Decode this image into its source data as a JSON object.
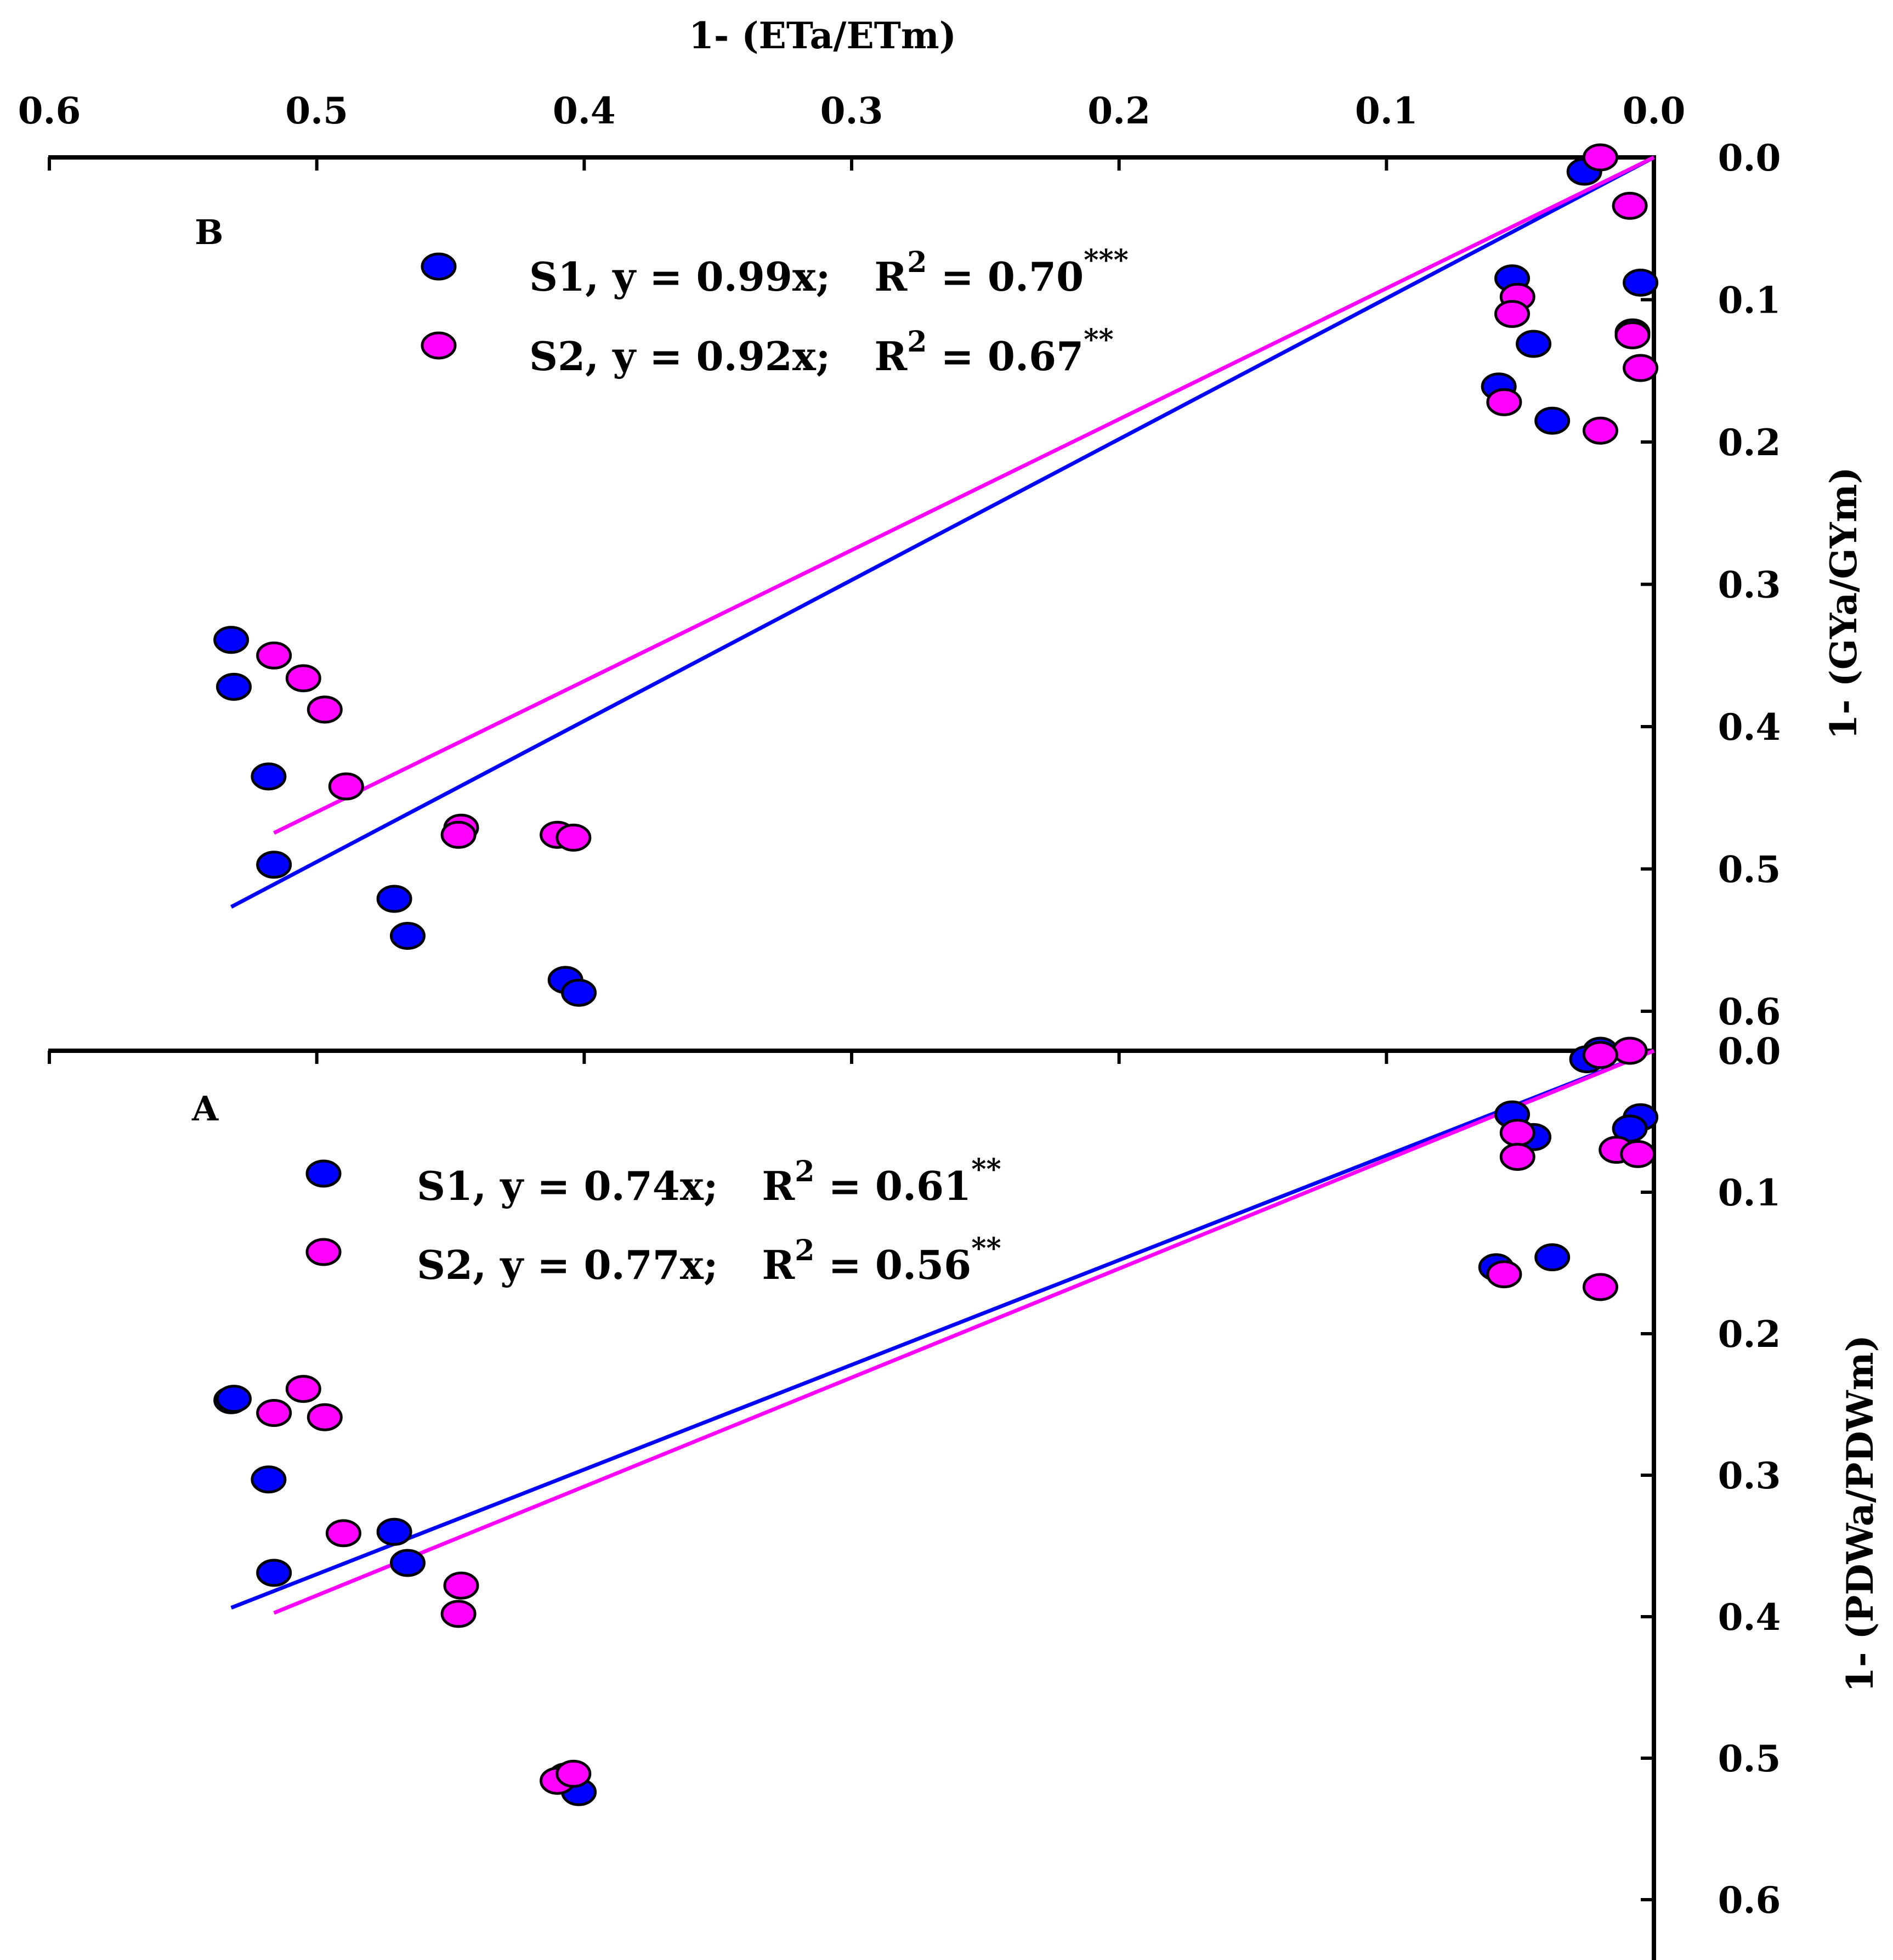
{
  "chart_data": {
    "type": "scatter",
    "x_axis": {
      "title": "1- (ETa/ETm)",
      "range": [
        0.6,
        0.0
      ],
      "ticks": [
        "0.6",
        "0.5",
        "0.4",
        "0.3",
        "0.2",
        "0.1",
        "0.0"
      ],
      "tick_values": [
        0.6,
        0.5,
        0.4,
        0.3,
        0.2,
        0.1,
        0.0
      ],
      "position": "top, reversed (values decrease left to right)"
    },
    "colors": {
      "S1": "#0000ff",
      "S2": "#ff00ff"
    },
    "panels": [
      {
        "label": "B",
        "y_axis": {
          "title": "1- (GYa/GYm)",
          "range": [
            0.0,
            0.6
          ],
          "ticks": [
            "0.0",
            "0.1",
            "0.2",
            "0.3",
            "0.4",
            "0.5",
            "0.6"
          ],
          "tick_values": [
            0.0,
            0.1,
            0.2,
            0.3,
            0.4,
            0.5,
            0.6
          ],
          "position": "right, inverted (values increase downward)"
        },
        "legend": [
          {
            "series": "S1",
            "eq": "S1, y = 0.99x;",
            "r2_label": "R",
            "r2_sup": "2",
            "r2_value": " = 0.70",
            "sig": "***"
          },
          {
            "series": "S2",
            "eq": "S2, y = 0.92x;",
            "r2_label": "R",
            "r2_sup": "2",
            "r2_value": " = 0.67",
            "sig": "**"
          }
        ],
        "series": [
          {
            "name": "S1",
            "slope": 0.99,
            "fit_x_range": [
              0.0,
              0.532
            ],
            "points": [
              [
                0.026,
                0.01
              ],
              [
                0.005,
                0.088
              ],
              [
                0.053,
                0.085
              ],
              [
                0.008,
                0.123
              ],
              [
                0.045,
                0.131
              ],
              [
                0.058,
                0.161
              ],
              [
                0.038,
                0.185
              ],
              [
                0.532,
                0.339
              ],
              [
                0.531,
                0.372
              ],
              [
                0.518,
                0.435
              ],
              [
                0.516,
                0.497
              ],
              [
                0.471,
                0.521
              ],
              [
                0.466,
                0.547
              ],
              [
                0.407,
                0.578
              ],
              [
                0.402,
                0.587
              ]
            ]
          },
          {
            "name": "S2",
            "slope": 0.92,
            "fit_x_range": [
              0.0,
              0.516
            ],
            "points": [
              [
                0.02,
                0.0
              ],
              [
                0.009,
                0.034
              ],
              [
                0.051,
                0.098
              ],
              [
                0.053,
                0.11
              ],
              [
                0.008,
                0.125
              ],
              [
                0.005,
                0.148
              ],
              [
                0.056,
                0.172
              ],
              [
                0.02,
                0.192
              ],
              [
                0.516,
                0.35
              ],
              [
                0.505,
                0.366
              ],
              [
                0.497,
                0.388
              ],
              [
                0.489,
                0.442
              ],
              [
                0.446,
                0.471
              ],
              [
                0.447,
                0.476
              ],
              [
                0.41,
                0.476
              ],
              [
                0.404,
                0.478
              ]
            ]
          }
        ]
      },
      {
        "label": "A",
        "y_axis": {
          "title": "1- (PDWa/PDWm)",
          "range": [
            0.0,
            0.62
          ],
          "ticks": [
            "0.0",
            "0.1",
            "0.2",
            "0.3",
            "0.4",
            "0.5",
            "0.6"
          ],
          "tick_values": [
            0.0,
            0.1,
            0.2,
            0.3,
            0.4,
            0.5,
            0.6
          ],
          "position": "right, inverted (values increase downward)"
        },
        "legend": [
          {
            "series": "S1",
            "eq": "S1, y = 0.74x;",
            "r2_label": "R",
            "r2_sup": "2",
            "r2_value": " = 0.61",
            "sig": "**"
          },
          {
            "series": "S2",
            "eq": "S2, y = 0.77x;",
            "r2_label": "R",
            "r2_sup": "2",
            "r2_value": " = 0.56",
            "sig": "**"
          }
        ],
        "series": [
          {
            "name": "S1",
            "slope": 0.74,
            "fit_x_range": [
              0.0,
              0.532
            ],
            "points": [
              [
                0.02,
                0.0
              ],
              [
                0.025,
                0.006
              ],
              [
                0.005,
                0.047
              ],
              [
                0.009,
                0.055
              ],
              [
                0.053,
                0.045
              ],
              [
                0.045,
                0.061
              ],
              [
                0.038,
                0.146
              ],
              [
                0.059,
                0.153
              ],
              [
                0.532,
                0.247
              ],
              [
                0.531,
                0.246
              ],
              [
                0.518,
                0.303
              ],
              [
                0.516,
                0.369
              ],
              [
                0.471,
                0.34
              ],
              [
                0.466,
                0.362
              ],
              [
                0.407,
                0.513
              ],
              [
                0.402,
                0.524
              ]
            ]
          },
          {
            "name": "S2",
            "slope": 0.77,
            "fit_x_range": [
              0.0,
              0.516
            ],
            "points": [
              [
                0.009,
                0.0
              ],
              [
                0.02,
                0.003
              ],
              [
                0.051,
                0.058
              ],
              [
                0.051,
                0.075
              ],
              [
                0.014,
                0.07
              ],
              [
                0.006,
                0.073
              ],
              [
                0.056,
                0.158
              ],
              [
                0.02,
                0.167
              ],
              [
                0.505,
                0.239
              ],
              [
                0.516,
                0.256
              ],
              [
                0.497,
                0.259
              ],
              [
                0.49,
                0.341
              ],
              [
                0.446,
                0.378
              ],
              [
                0.447,
                0.398
              ],
              [
                0.41,
                0.516
              ],
              [
                0.404,
                0.511
              ]
            ]
          }
        ]
      }
    ]
  }
}
